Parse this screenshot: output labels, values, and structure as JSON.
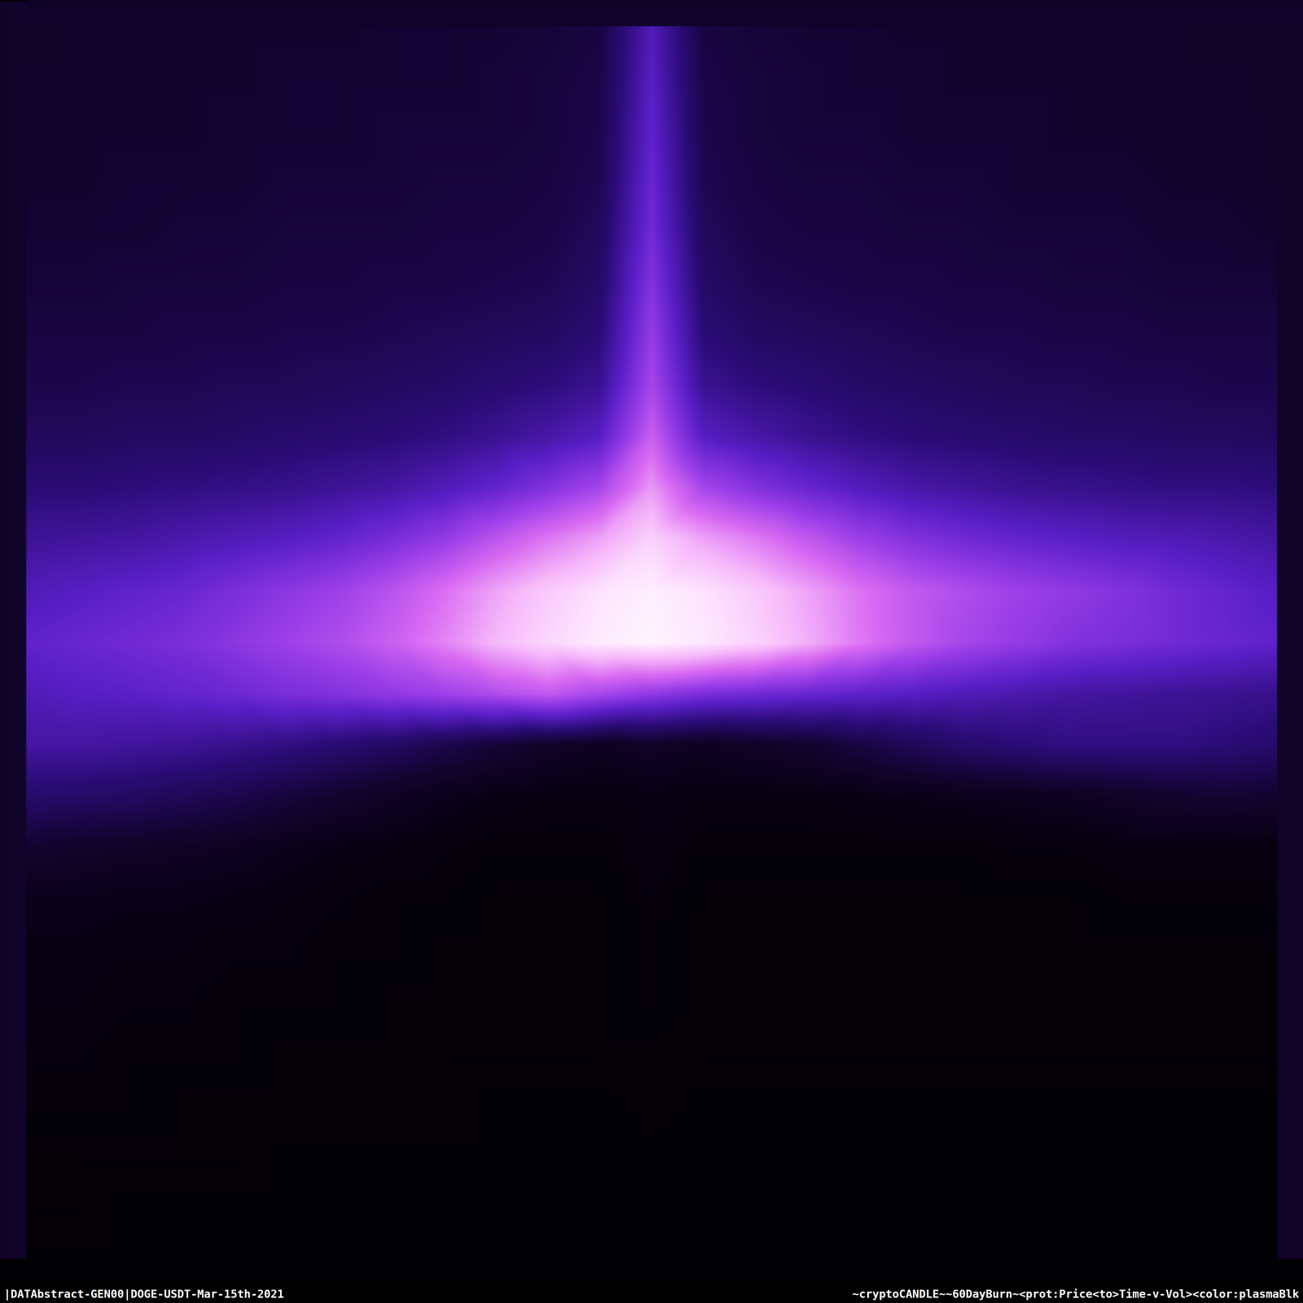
{
  "chart_data": {
    "type": "heatmap",
    "annotations": [
      "|DATAbstract-GEN00|DOGE-USDT-Mar-15th-2021",
      "~cryptoCANDLE~~60DayBurn~<prot:Price<to>Time-v-Vol><color:plasmaBlk"
    ],
    "tick_labels": false,
    "zlim": [
      0,
      100
    ],
    "cells": [
      [
        12,
        13,
        13,
        14,
        14,
        14,
        14,
        15,
        15,
        15,
        16,
        18,
        40,
        18,
        16,
        15,
        15,
        14,
        14,
        14,
        13,
        13,
        13,
        12,
        12
      ],
      [
        13,
        13,
        14,
        14,
        14,
        15,
        15,
        15,
        15,
        16,
        17,
        19,
        42,
        19,
        17,
        16,
        15,
        15,
        14,
        14,
        14,
        13,
        13,
        13,
        12
      ],
      [
        13,
        14,
        14,
        14,
        15,
        15,
        15,
        16,
        16,
        16,
        17,
        20,
        44,
        20,
        17,
        16,
        16,
        15,
        15,
        15,
        14,
        14,
        13,
        13,
        13
      ],
      [
        14,
        14,
        15,
        15,
        15,
        16,
        16,
        16,
        17,
        17,
        18,
        21,
        46,
        21,
        18,
        17,
        17,
        16,
        16,
        15,
        15,
        15,
        14,
        14,
        13
      ],
      [
        15,
        15,
        15,
        16,
        16,
        17,
        17,
        17,
        18,
        18,
        19,
        23,
        48,
        23,
        19,
        18,
        18,
        17,
        17,
        16,
        16,
        16,
        15,
        15,
        14
      ],
      [
        16,
        16,
        17,
        17,
        17,
        18,
        18,
        19,
        19,
        20,
        21,
        25,
        52,
        25,
        21,
        20,
        19,
        19,
        18,
        18,
        17,
        17,
        16,
        16,
        16
      ],
      [
        18,
        18,
        18,
        19,
        19,
        20,
        20,
        21,
        22,
        23,
        24,
        28,
        56,
        28,
        24,
        23,
        22,
        21,
        20,
        20,
        19,
        19,
        18,
        18,
        18
      ],
      [
        20,
        20,
        21,
        21,
        22,
        22,
        23,
        24,
        25,
        27,
        29,
        33,
        60,
        33,
        29,
        27,
        25,
        24,
        23,
        22,
        22,
        21,
        21,
        20,
        20
      ],
      [
        23,
        23,
        24,
        24,
        25,
        26,
        27,
        28,
        30,
        33,
        37,
        42,
        68,
        42,
        37,
        33,
        30,
        28,
        27,
        26,
        25,
        25,
        24,
        24,
        23
      ],
      [
        28,
        28,
        29,
        30,
        31,
        32,
        34,
        36,
        40,
        45,
        52,
        60,
        80,
        60,
        52,
        46,
        41,
        37,
        35,
        33,
        32,
        31,
        30,
        30,
        29
      ],
      [
        34,
        35,
        36,
        38,
        40,
        42,
        45,
        50,
        56,
        65,
        74,
        82,
        92,
        82,
        75,
        66,
        58,
        52,
        48,
        45,
        43,
        41,
        40,
        38,
        36
      ],
      [
        40,
        42,
        44,
        46,
        50,
        54,
        58,
        64,
        72,
        82,
        90,
        96,
        99,
        96,
        90,
        82,
        73,
        66,
        62,
        58,
        55,
        52,
        48,
        45,
        42
      ],
      [
        44,
        46,
        48,
        50,
        54,
        58,
        62,
        68,
        76,
        86,
        93,
        98,
        100,
        97,
        92,
        84,
        74,
        66,
        60,
        56,
        52,
        50,
        48,
        46,
        44
      ],
      [
        40,
        42,
        43,
        45,
        47,
        50,
        52,
        55,
        58,
        62,
        66,
        60,
        55,
        50,
        48,
        46,
        44,
        42,
        40,
        38,
        36,
        35,
        34,
        33,
        32
      ],
      [
        36,
        36,
        35,
        34,
        32,
        30,
        27,
        24,
        20,
        16,
        12,
        10,
        12,
        10,
        12,
        14,
        18,
        22,
        26,
        28,
        30,
        30,
        30,
        28,
        26
      ],
      [
        26,
        25,
        24,
        22,
        20,
        17,
        14,
        11,
        8,
        6,
        5,
        5,
        6,
        5,
        5,
        5,
        6,
        7,
        8,
        9,
        10,
        12,
        14,
        15,
        14
      ],
      [
        14,
        13,
        12,
        11,
        10,
        8,
        6,
        5,
        4,
        3,
        3,
        3,
        5,
        3,
        3,
        3,
        3,
        3,
        3,
        4,
        4,
        5,
        5,
        5,
        5
      ],
      [
        8,
        8,
        7,
        7,
        6,
        5,
        4,
        3,
        3,
        2,
        2,
        2,
        4,
        2,
        2,
        2,
        2,
        2,
        2,
        2,
        2,
        3,
        3,
        3,
        3
      ],
      [
        6,
        6,
        5,
        5,
        4,
        4,
        3,
        3,
        2,
        2,
        2,
        2,
        3,
        2,
        2,
        2,
        2,
        2,
        2,
        2,
        2,
        2,
        2,
        2,
        2
      ],
      [
        5,
        5,
        4,
        4,
        3,
        3,
        3,
        2,
        2,
        2,
        2,
        2,
        3,
        2,
        2,
        2,
        2,
        2,
        2,
        2,
        2,
        2,
        2,
        2,
        2
      ],
      [
        4,
        4,
        3,
        3,
        3,
        2,
        2,
        2,
        2,
        2,
        2,
        2,
        2,
        2,
        2,
        2,
        2,
        2,
        2,
        2,
        2,
        2,
        2,
        2,
        2
      ],
      [
        3,
        3,
        3,
        2,
        2,
        2,
        2,
        2,
        2,
        1,
        1,
        1,
        2,
        1,
        1,
        1,
        1,
        1,
        1,
        1,
        1,
        1,
        1,
        1,
        1
      ],
      [
        2,
        2,
        2,
        2,
        2,
        1,
        1,
        1,
        1,
        1,
        1,
        1,
        1,
        1,
        1,
        1,
        1,
        1,
        1,
        1,
        1,
        1,
        1,
        1,
        1
      ],
      [
        2,
        2,
        1,
        1,
        1,
        1,
        1,
        1,
        1,
        1,
        1,
        1,
        1,
        1,
        1,
        1,
        1,
        1,
        1,
        1,
        1,
        1,
        1,
        1,
        1
      ],
      [
        1,
        1,
        1,
        1,
        1,
        1,
        1,
        1,
        1,
        1,
        1,
        1,
        1,
        1,
        1,
        1,
        1,
        1,
        1,
        1,
        1,
        1,
        1,
        1,
        1
      ]
    ]
  }
}
